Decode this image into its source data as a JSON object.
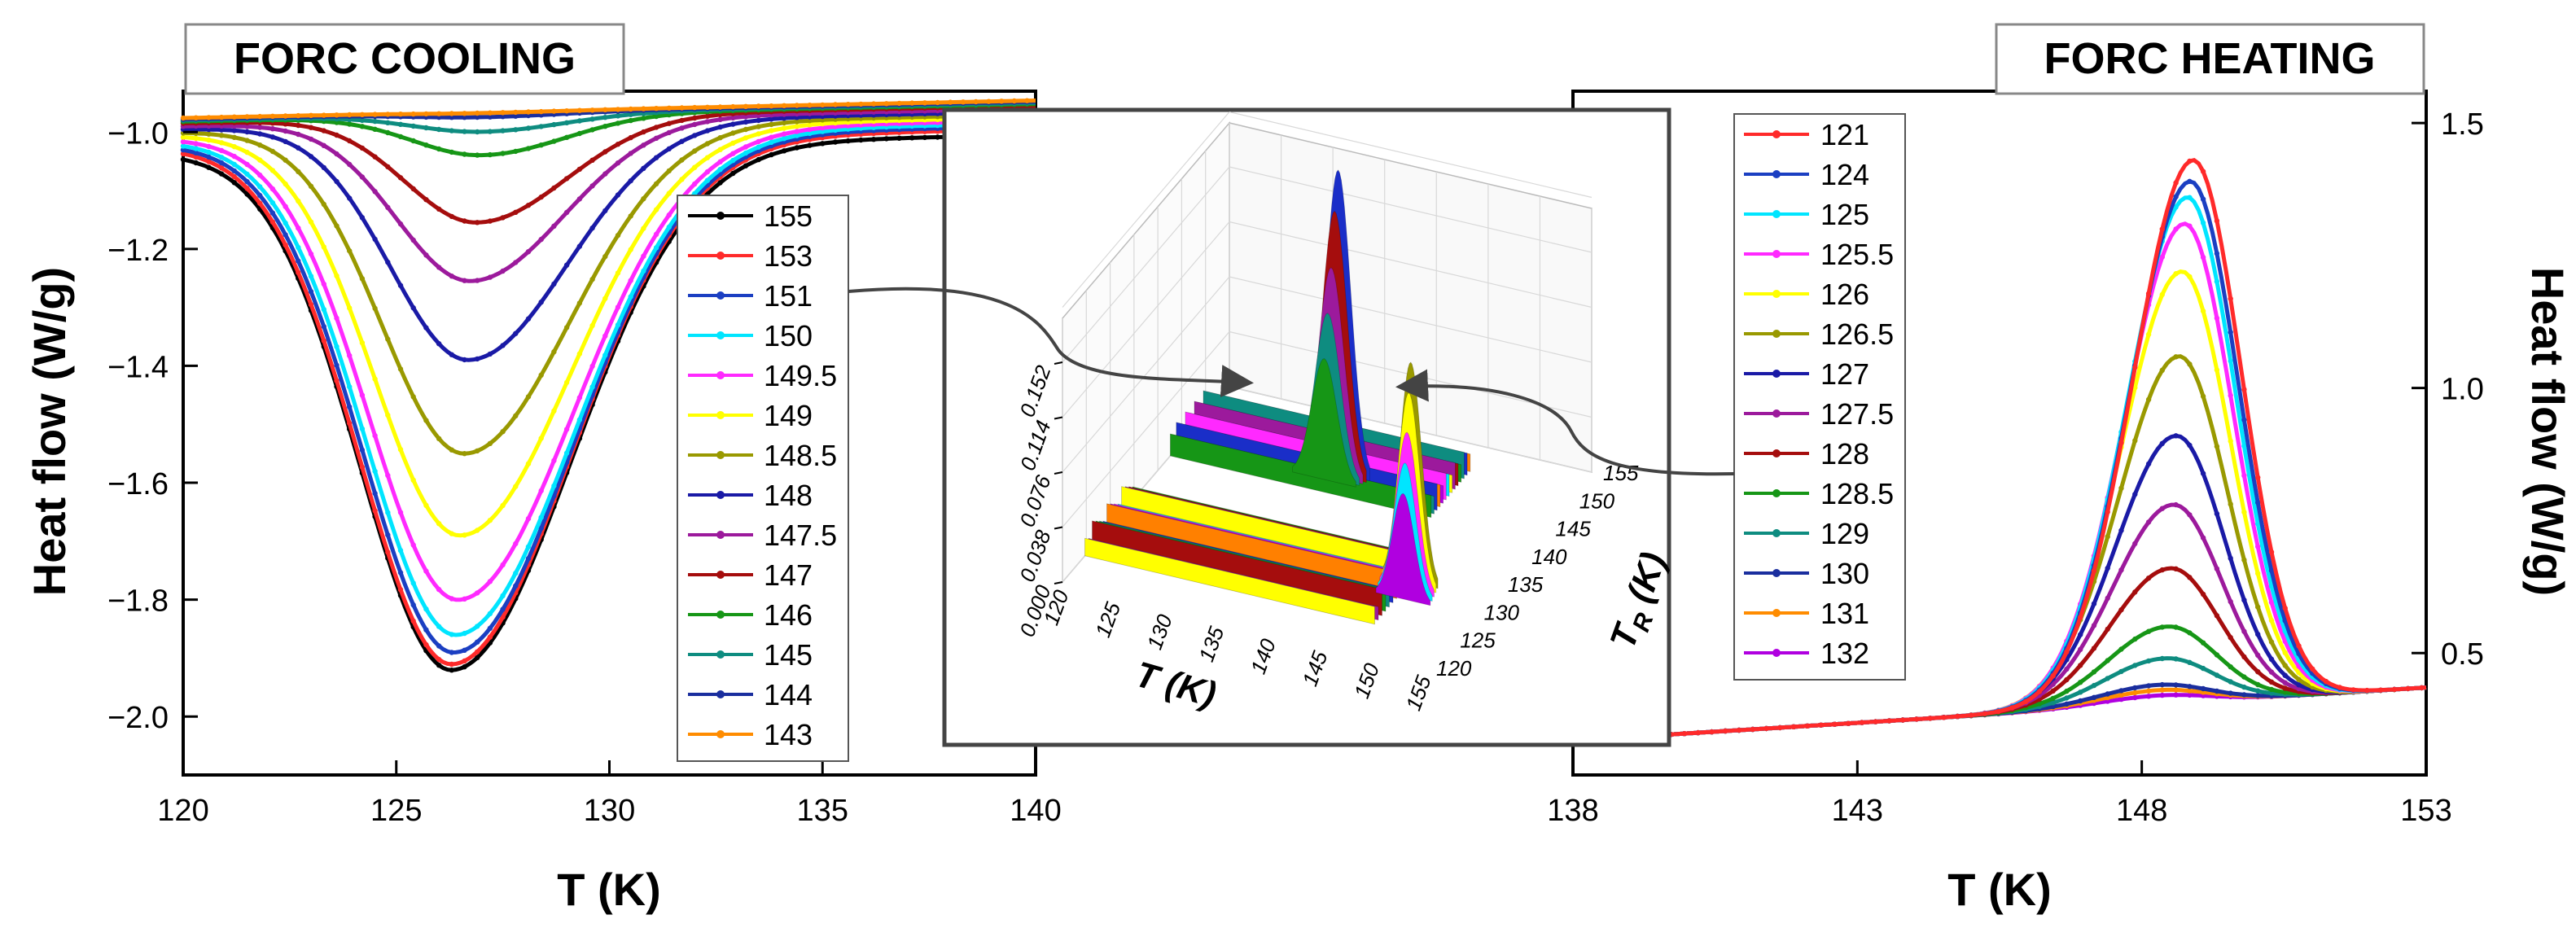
{
  "chart_data": [
    {
      "type": "line",
      "title": "FORC COOLING",
      "xlabel": "T (K)",
      "ylabel": "Heat flow (W/g)",
      "xlim": [
        120,
        140
      ],
      "ylim": [
        -2.1,
        -0.93
      ],
      "xticks": [
        "120",
        "125",
        "130",
        "135",
        "140"
      ],
      "yticks": [
        "−2.0",
        "−1.8",
        "−1.6",
        "−1.4",
        "−1.2",
        "−1.0"
      ],
      "ytick_values": [
        -2.0,
        -1.8,
        -1.6,
        -1.4,
        -1.2,
        -1.0
      ],
      "legend_position": "inside-center",
      "series": [
        {
          "name": "155",
          "color": "#000000",
          "base": -1.035,
          "min": -1.93,
          "tmin": 126.3
        },
        {
          "name": "153",
          "color": "#ff2a2a",
          "base": -1.025,
          "min": -1.92,
          "tmin": 126.3
        },
        {
          "name": "151",
          "color": "#1b3fc2",
          "base": -1.02,
          "min": -1.9,
          "tmin": 126.35
        },
        {
          "name": "150",
          "color": "#00e5ff",
          "base": -1.015,
          "min": -1.87,
          "tmin": 126.4
        },
        {
          "name": "149.5",
          "color": "#ff29ff",
          "base": -1.01,
          "min": -1.81,
          "tmin": 126.45
        },
        {
          "name": "149",
          "color": "#ffff00",
          "base": -1.005,
          "min": -1.7,
          "tmin": 126.5
        },
        {
          "name": "148.5",
          "color": "#999900",
          "base": -1.0,
          "min": -1.56,
          "tmin": 126.6
        },
        {
          "name": "148",
          "color": "#1a1aa6",
          "base": -0.995,
          "min": -1.4,
          "tmin": 126.7
        },
        {
          "name": "147.5",
          "color": "#9c1a9c",
          "base": -0.99,
          "min": -1.265,
          "tmin": 126.75
        },
        {
          "name": "147",
          "color": "#a50d0d",
          "base": -0.985,
          "min": -1.165,
          "tmin": 126.9
        },
        {
          "name": "146",
          "color": "#169616",
          "base": -0.982,
          "min": -1.05,
          "tmin": 127.0
        },
        {
          "name": "145",
          "color": "#0e8c80",
          "base": -0.98,
          "min": -1.01,
          "tmin": 127.0
        },
        {
          "name": "144",
          "color": "#1a2e9e",
          "base": -0.978,
          "min": -0.985,
          "tmin": 127.0
        },
        {
          "name": "143",
          "color": "#ff8c00",
          "base": -0.976,
          "min": -0.978,
          "tmin": 127.0
        }
      ]
    },
    {
      "type": "line",
      "title": "FORC HEATING",
      "xlabel": "T (K)",
      "ylabel": "Heat flow (W/g)",
      "xlim": [
        138,
        153
      ],
      "ylim": [
        0.27,
        1.56
      ],
      "xticks": [
        "138",
        "143",
        "148",
        "153"
      ],
      "yticks": [
        "0.5",
        "1.0",
        "1.5"
      ],
      "ytick_values": [
        0.5,
        1.0,
        1.5
      ],
      "legend_position": "top-left",
      "series": [
        {
          "name": "121",
          "color": "#ff2a2a",
          "peak": 1.43,
          "tpeak": 148.9
        },
        {
          "name": "124",
          "color": "#1b3fc2",
          "peak": 1.39,
          "tpeak": 148.85
        },
        {
          "name": "125",
          "color": "#00e5ff",
          "peak": 1.36,
          "tpeak": 148.8
        },
        {
          "name": "125.5",
          "color": "#ff29ff",
          "peak": 1.31,
          "tpeak": 148.75
        },
        {
          "name": "126",
          "color": "#ffff00",
          "peak": 1.22,
          "tpeak": 148.7
        },
        {
          "name": "126.5",
          "color": "#999900",
          "peak": 1.06,
          "tpeak": 148.65
        },
        {
          "name": "127",
          "color": "#1a1aa6",
          "peak": 0.91,
          "tpeak": 148.6
        },
        {
          "name": "127.5",
          "color": "#9c1a9c",
          "peak": 0.78,
          "tpeak": 148.55
        },
        {
          "name": "128",
          "color": "#a50d0d",
          "peak": 0.66,
          "tpeak": 148.5
        },
        {
          "name": "128.5",
          "color": "#169616",
          "peak": 0.55,
          "tpeak": 148.45
        },
        {
          "name": "129",
          "color": "#0e8c80",
          "peak": 0.49,
          "tpeak": 148.4
        },
        {
          "name": "130",
          "color": "#1a2e9e",
          "peak": 0.44,
          "tpeak": 148.3
        },
        {
          "name": "131",
          "color": "#ff8c00",
          "peak": 0.43,
          "tpeak": 148.3
        },
        {
          "name": "132",
          "color": "#b000e0",
          "peak": 0.42,
          "tpeak": 148.3
        }
      ]
    },
    {
      "type": "surface-3d",
      "xlabel": "T (K)",
      "ylabel": "T",
      "ylabel_sub": "R",
      "ylabel_suffix": " (K)",
      "zticks": [
        "0.000",
        "0.038",
        "0.076",
        "0.114",
        "0.152"
      ],
      "xticks": [
        "120",
        "125",
        "130",
        "135",
        "140",
        "145",
        "150",
        "155"
      ],
      "yticks": [
        "120",
        "125",
        "130",
        "135",
        "140",
        "145",
        "150",
        "155"
      ],
      "slab_colors": [
        "#ff8000",
        "#1a2ec8",
        "#0e8c80",
        "#169616",
        "#a50d0d",
        "#9c1a9c",
        "#ffff00",
        "#00e5ff",
        "#ff29ff",
        "#b000e0"
      ]
    }
  ]
}
